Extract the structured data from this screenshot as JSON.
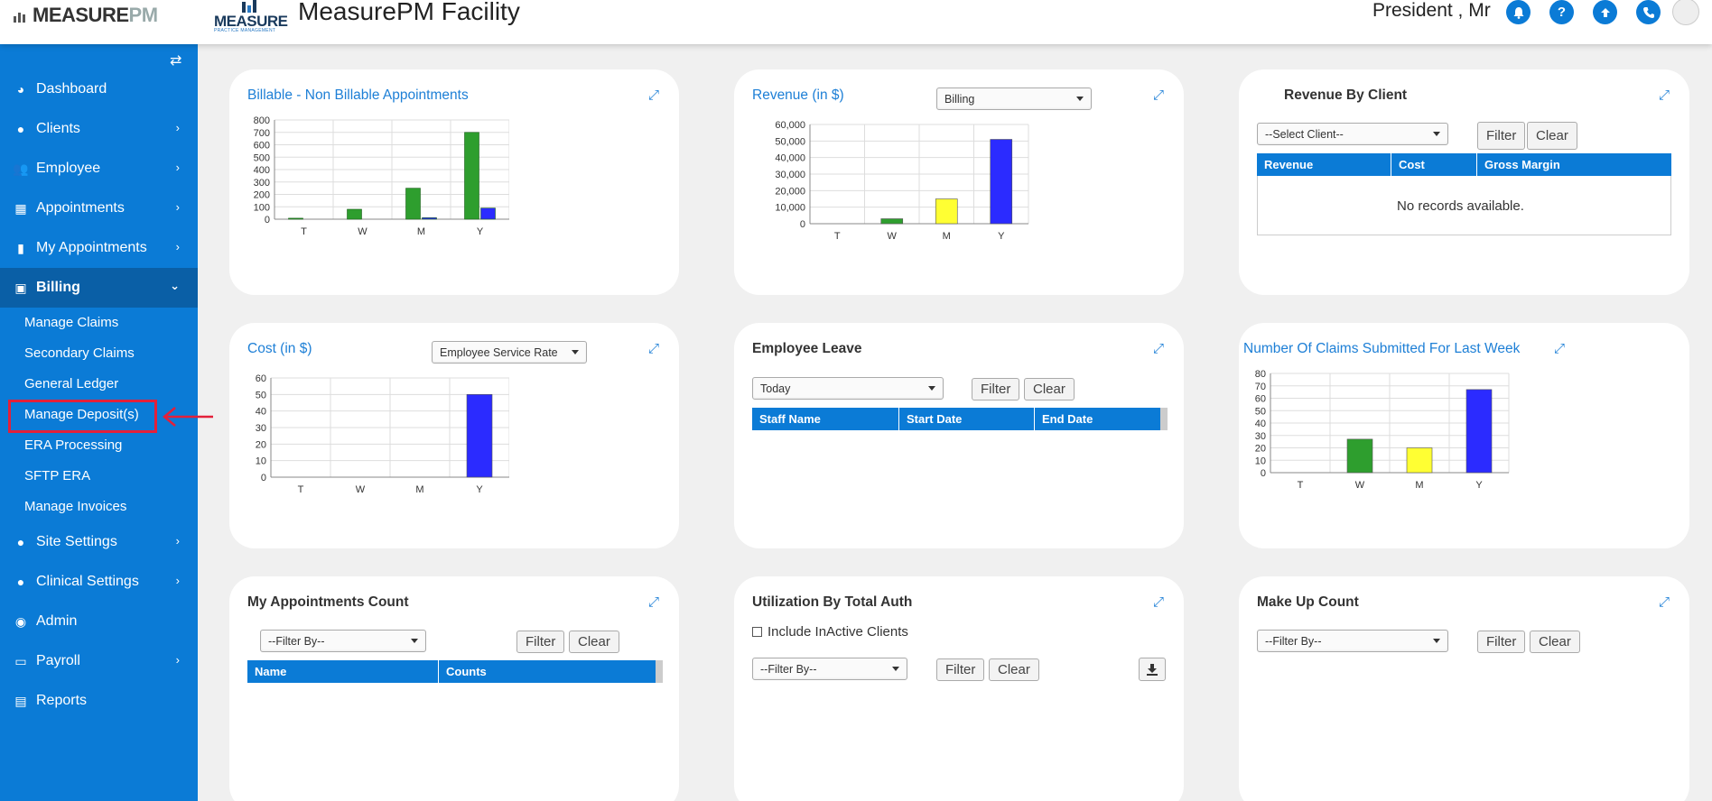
{
  "header": {
    "brand": "MEASURE",
    "brand_pm": "PM",
    "logo_text": "MEASURE",
    "logo_tag": "PRACTICE MANAGEMENT",
    "title": "MeasurePM Facility",
    "user": "President , Mr",
    "icons": [
      "bell-icon",
      "help-icon",
      "upload-icon",
      "phone-icon"
    ]
  },
  "sidebar": {
    "items": [
      {
        "label": "Dashboard",
        "icon": "dashboard-icon"
      },
      {
        "label": "Clients",
        "icon": "user-icon"
      },
      {
        "label": "Employee",
        "icon": "users-icon"
      },
      {
        "label": "Appointments",
        "icon": "calendar-icon"
      },
      {
        "label": "My Appointments",
        "icon": "clipboard-icon"
      },
      {
        "label": "Billing",
        "icon": "money-icon"
      },
      {
        "label": "Site Settings",
        "icon": "user-icon"
      },
      {
        "label": "Clinical Settings",
        "icon": "user-icon"
      },
      {
        "label": "Admin",
        "icon": "user-circle-icon"
      },
      {
        "label": "Payroll",
        "icon": "wallet-icon"
      },
      {
        "label": "Reports",
        "icon": "card-icon"
      }
    ],
    "billing_sub": [
      "Manage Claims",
      "Secondary Claims",
      "General Ledger",
      "Manage Deposit(s)",
      "ERA Processing",
      "SFTP ERA",
      "Manage Invoices"
    ]
  },
  "cards": {
    "billable": {
      "title": "Billable - Non Billable Appointments"
    },
    "revenue": {
      "title": "Revenue (in $)",
      "select": "Billing"
    },
    "rev_client": {
      "title": "Revenue By Client",
      "select": "--Select Client--",
      "filter": "Filter",
      "clear": "Clear",
      "cols": [
        "Revenue",
        "Cost",
        "Gross Margin"
      ],
      "empty": "No records available."
    },
    "cost": {
      "title": "Cost (in $)",
      "select": "Employee Service Rate"
    },
    "leave": {
      "title": "Employee Leave",
      "select": "Today",
      "filter": "Filter",
      "clear": "Clear",
      "cols": [
        "Staff Name",
        "Start Date",
        "End Date"
      ]
    },
    "claims": {
      "title": "Number Of Claims Submitted For Last Week"
    },
    "appt_count": {
      "title": "My Appointments Count",
      "select": "--Filter By--",
      "filter": "Filter",
      "clear": "Clear",
      "cols": [
        "Name",
        "Counts"
      ]
    },
    "util": {
      "title": "Utilization By Total Auth",
      "checkbox": "Include InActive Clients",
      "select": "--Filter By--",
      "filter": "Filter",
      "clear": "Clear"
    },
    "makeup": {
      "title": "Make Up Count",
      "select": "--Filter By--",
      "filter": "Filter",
      "clear": "Clear"
    }
  },
  "chart_data": [
    {
      "type": "bar",
      "categories": [
        "T",
        "W",
        "M",
        "Y"
      ],
      "series": [
        {
          "values": [
            8,
            80,
            250,
            700
          ],
          "color": "#2e9e2e"
        },
        {
          "values": [
            0,
            0,
            12,
            90
          ],
          "color": "#2b2bff"
        }
      ],
      "ylim": [
        0,
        800
      ],
      "yticks": [
        "0",
        "100",
        "200",
        "300",
        "400",
        "500",
        "600",
        "700",
        "800"
      ]
    },
    {
      "type": "bar",
      "categories": [
        "T",
        "W",
        "M",
        "Y"
      ],
      "values": [
        0,
        3000,
        15000,
        51000
      ],
      "colors": [
        "#2e9e2e",
        "#2e9e2e",
        "#ffff33",
        "#2b2bff"
      ],
      "ylim": [
        0,
        60000
      ],
      "yticks": [
        "0",
        "10,000",
        "20,000",
        "30,000",
        "40,000",
        "50,000",
        "60,000"
      ]
    },
    {
      "type": "bar",
      "categories": [
        "T",
        "W",
        "M",
        "Y"
      ],
      "values": [
        0,
        0,
        0,
        50
      ],
      "colors": [
        "#2e9e2e",
        "#2e9e2e",
        "#ffff33",
        "#2b2bff"
      ],
      "ylim": [
        0,
        60
      ],
      "yticks": [
        "0",
        "10",
        "20",
        "30",
        "40",
        "50",
        "60"
      ]
    },
    {
      "type": "bar",
      "categories": [
        "T",
        "W",
        "M",
        "Y"
      ],
      "values": [
        0,
        27,
        20,
        67
      ],
      "colors": [
        "#2e9e2e",
        "#2e9e2e",
        "#ffff33",
        "#2b2bff"
      ],
      "ylim": [
        0,
        80
      ],
      "yticks": [
        "0",
        "10",
        "20",
        "30",
        "40",
        "50",
        "60",
        "70",
        "80"
      ]
    }
  ]
}
